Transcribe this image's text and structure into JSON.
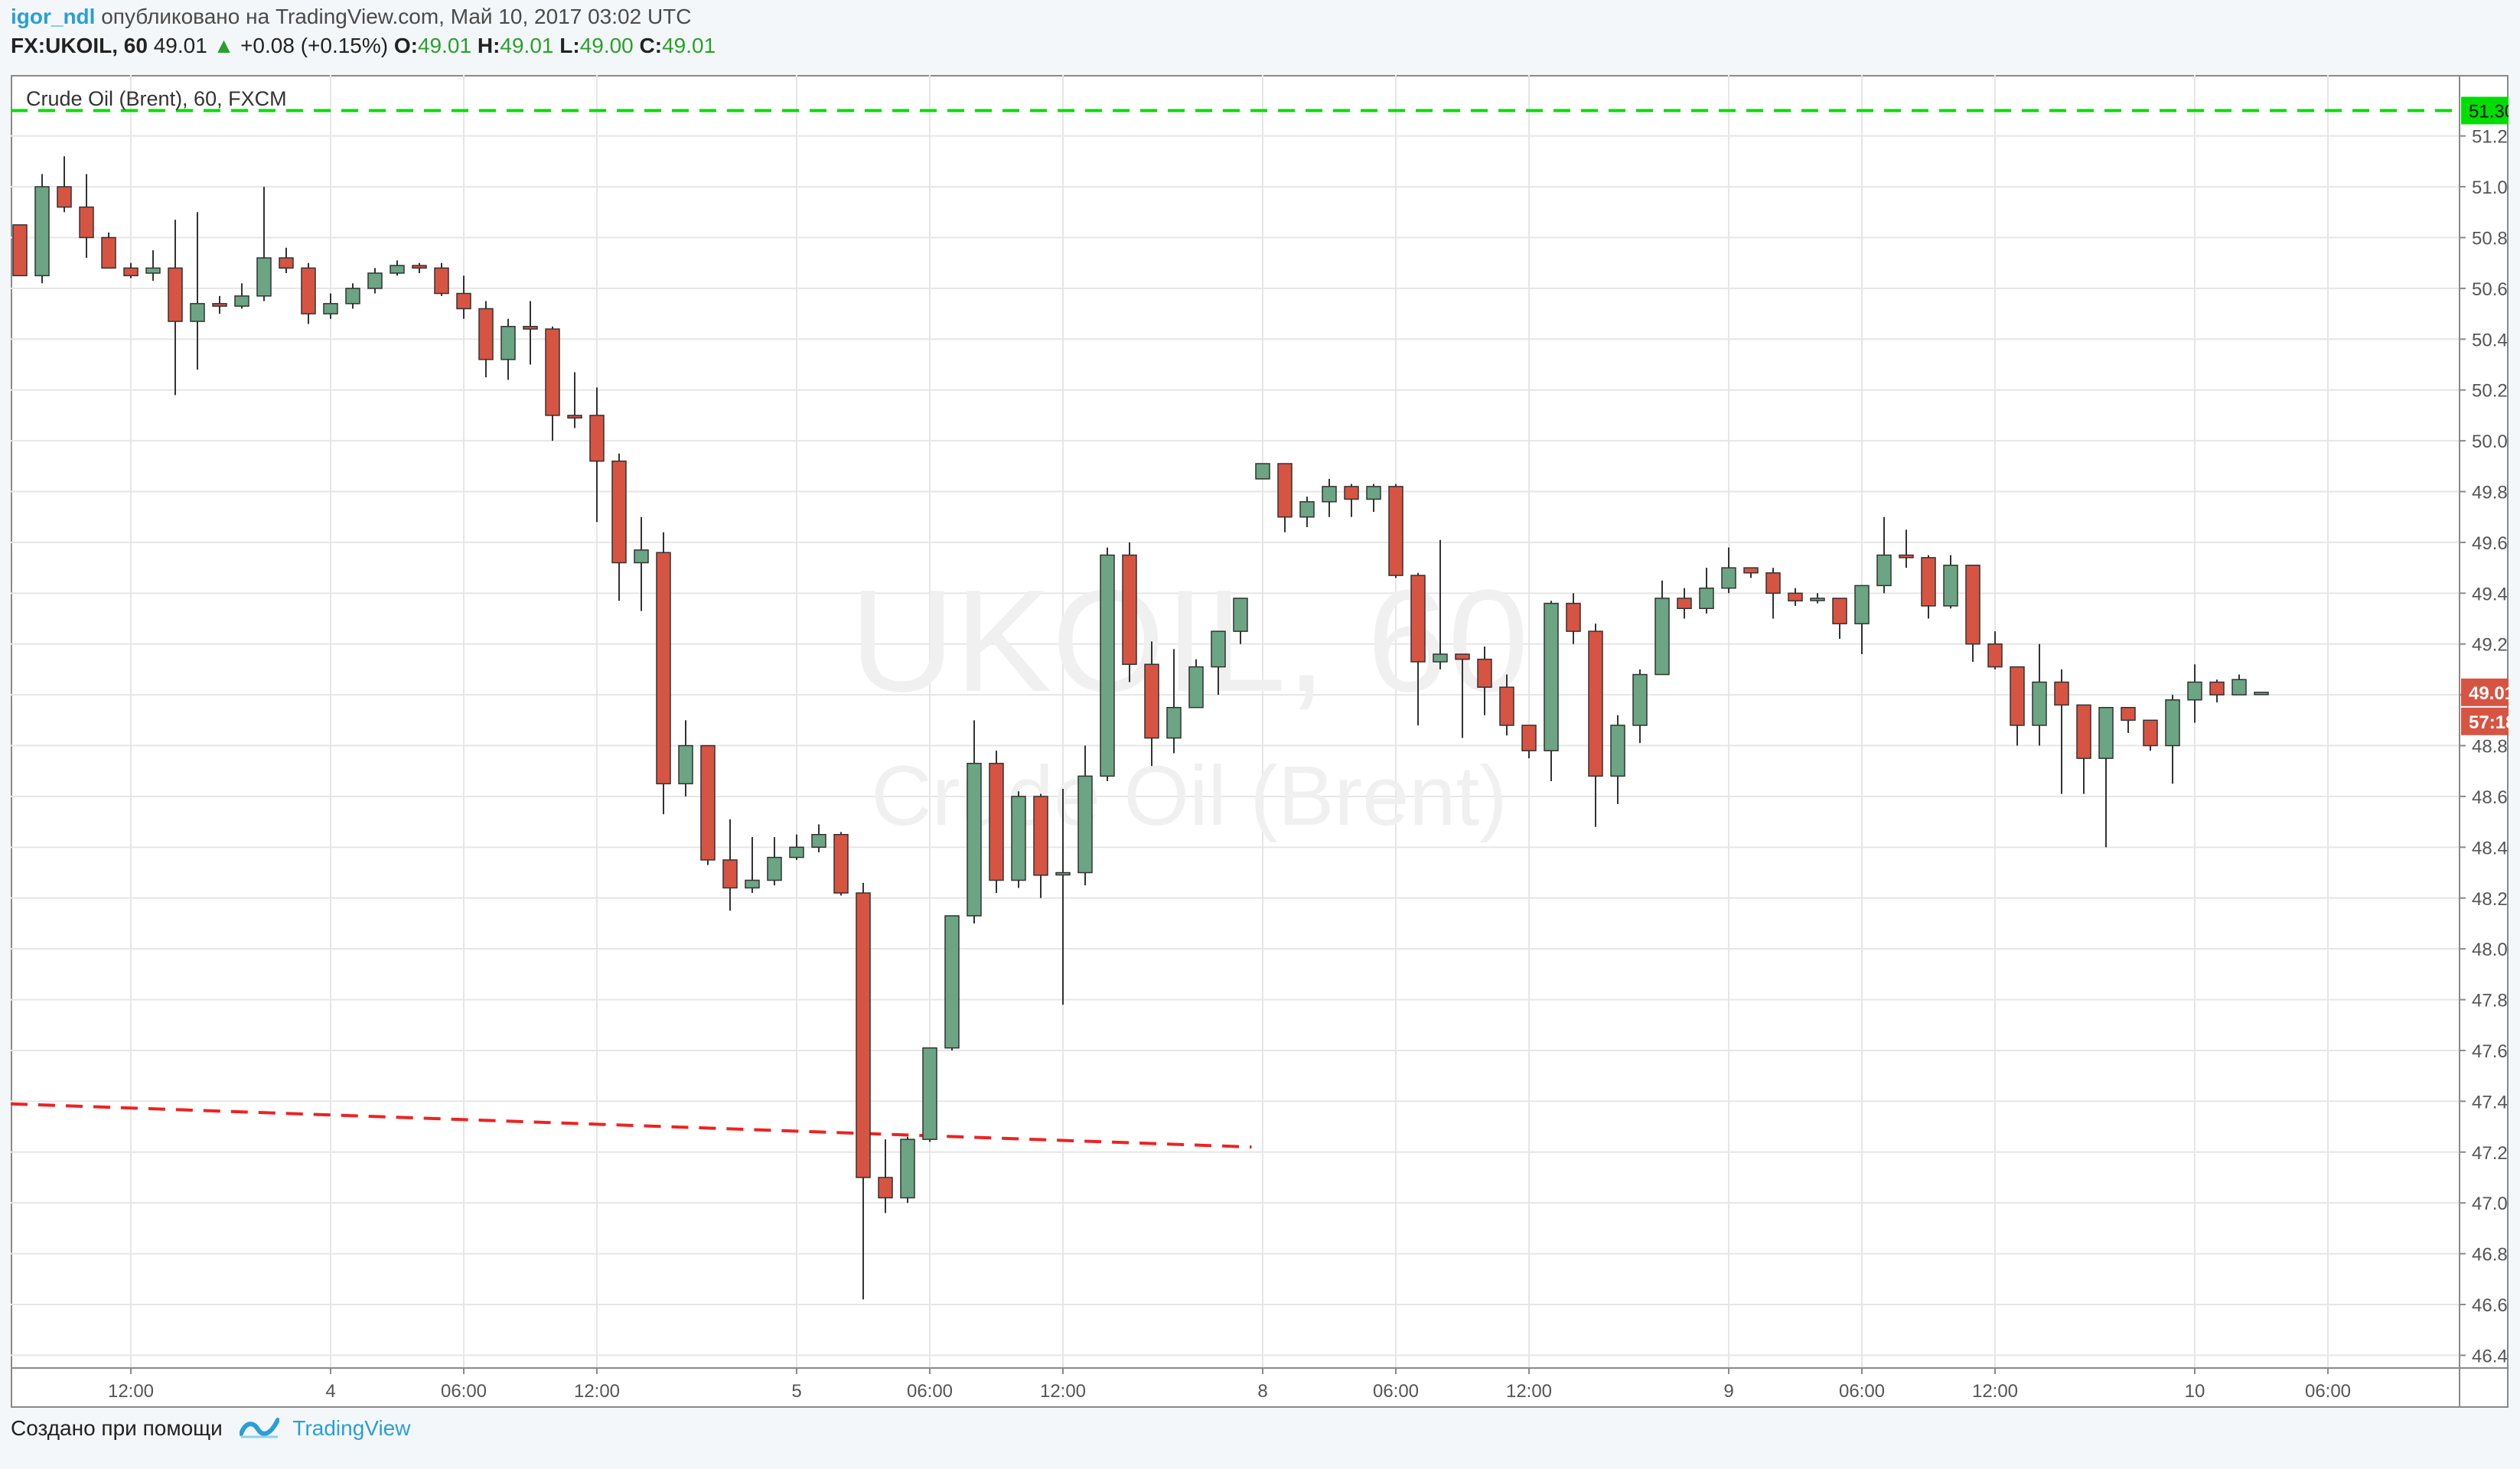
{
  "header": {
    "author": "igor_ndl",
    "published_text": "опубликовано на TradingView.com, Май 10, 2017 03:02 UTC",
    "symbol": "FX:UKOIL, 60",
    "last": "49.01",
    "change": "+0.08 (+0.15%)",
    "o_label": "O:",
    "o_value": "49.01",
    "h_label": "H:",
    "h_value": "49.01",
    "l_label": "L:",
    "l_value": "49.00",
    "c_label": "C:",
    "c_value": "49.01"
  },
  "footer": {
    "created_with": "Создано при помощи",
    "brand": "TradingView"
  },
  "chart_data": {
    "type": "candlestick",
    "title": "Crude Oil (Brent), 60, FXCM",
    "watermark_line1": "UKOIL, 60",
    "watermark_line2": "Crude Oil (Brent)",
    "ylim": [
      46.35,
      51.44
    ],
    "y_ticks": [
      "51.20",
      "51.00",
      "50.80",
      "50.60",
      "50.40",
      "50.20",
      "50.00",
      "49.80",
      "49.60",
      "49.40",
      "49.20",
      "49.00",
      "48.80",
      "48.60",
      "48.40",
      "48.20",
      "48.00",
      "47.80",
      "47.60",
      "47.40",
      "47.20",
      "47.00",
      "46.80",
      "46.60",
      "46.40"
    ],
    "x_ticks": [
      {
        "label": "12:00",
        "i": 5
      },
      {
        "label": "4",
        "i": 14
      },
      {
        "label": "06:00",
        "i": 20
      },
      {
        "label": "12:00",
        "i": 26
      },
      {
        "label": "5",
        "i": 35
      },
      {
        "label": "06:00",
        "i": 41
      },
      {
        "label": "12:00",
        "i": 47
      },
      {
        "label": "8",
        "i": 56
      },
      {
        "label": "06:00",
        "i": 62
      },
      {
        "label": "12:00",
        "i": 68
      },
      {
        "label": "9",
        "i": 77
      },
      {
        "label": "06:00",
        "i": 83
      },
      {
        "label": "12:00",
        "i": 89
      },
      {
        "label": "10",
        "i": 98
      },
      {
        "label": "06:00",
        "i": 104
      }
    ],
    "up_color": "#6ba583",
    "down_color": "#d75442",
    "resistance": {
      "value": "51.30",
      "color": "#00dd00"
    },
    "trend_line": {
      "color": "#ee2222",
      "x1": 0,
      "y1": 47.39,
      "x2": 55.5,
      "y2": 47.22
    },
    "last_price_label": {
      "value": "49.01",
      "color": "#d75442"
    },
    "countdown_label": {
      "value": "57:18",
      "color": "#d75442"
    },
    "candles": [
      [
        50.85,
        50.8,
        50.65,
        50.65
      ],
      [
        50.65,
        51.05,
        51.0,
        50.62
      ],
      [
        51.0,
        51.12,
        50.92,
        50.9
      ],
      [
        50.92,
        51.05,
        50.8,
        50.72
      ],
      [
        50.8,
        50.82,
        50.68,
        50.68
      ],
      [
        50.68,
        50.7,
        50.65,
        50.64
      ],
      [
        50.66,
        50.75,
        50.68,
        50.63
      ],
      [
        50.68,
        50.87,
        50.47,
        50.18
      ],
      [
        50.47,
        50.9,
        50.54,
        50.28
      ],
      [
        50.54,
        50.57,
        50.53,
        50.5
      ],
      [
        50.53,
        50.62,
        50.57,
        50.52
      ],
      [
        50.57,
        51.0,
        50.72,
        50.55
      ],
      [
        50.72,
        50.76,
        50.68,
        50.66
      ],
      [
        50.68,
        50.7,
        50.5,
        50.46
      ],
      [
        50.5,
        50.58,
        50.54,
        50.48
      ],
      [
        50.54,
        50.62,
        50.6,
        50.52
      ],
      [
        50.6,
        50.68,
        50.66,
        50.58
      ],
      [
        50.66,
        50.71,
        50.69,
        50.65
      ],
      [
        50.69,
        50.7,
        50.68,
        50.66
      ],
      [
        50.68,
        50.7,
        50.58,
        50.57
      ],
      [
        50.58,
        50.65,
        50.52,
        50.48
      ],
      [
        50.52,
        50.55,
        50.32,
        50.25
      ],
      [
        50.32,
        50.48,
        50.45,
        50.24
      ],
      [
        50.45,
        50.55,
        50.44,
        50.3
      ],
      [
        50.44,
        50.45,
        50.1,
        50.0
      ],
      [
        50.1,
        50.27,
        50.09,
        50.05
      ],
      [
        50.1,
        50.21,
        49.92,
        49.68
      ],
      [
        49.92,
        49.95,
        49.52,
        49.37
      ],
      [
        49.52,
        49.7,
        49.57,
        49.33
      ],
      [
        49.56,
        49.64,
        48.65,
        48.53
      ],
      [
        48.65,
        48.9,
        48.8,
        48.6
      ],
      [
        48.8,
        48.8,
        48.35,
        48.33
      ],
      [
        48.35,
        48.51,
        48.24,
        48.15
      ],
      [
        48.24,
        48.44,
        48.27,
        48.22
      ],
      [
        48.27,
        48.44,
        48.36,
        48.25
      ],
      [
        48.36,
        48.45,
        48.4,
        48.35
      ],
      [
        48.4,
        48.49,
        48.45,
        48.38
      ],
      [
        48.45,
        48.46,
        48.22,
        48.21
      ],
      [
        48.22,
        48.26,
        47.1,
        46.62
      ],
      [
        47.1,
        47.25,
        47.02,
        46.96
      ],
      [
        47.02,
        47.26,
        47.25,
        47.0
      ],
      [
        47.25,
        47.5,
        47.61,
        47.24
      ],
      [
        47.61,
        48.12,
        48.13,
        47.6
      ],
      [
        48.13,
        48.9,
        48.73,
        48.1
      ],
      [
        48.73,
        48.78,
        48.27,
        48.22
      ],
      [
        48.27,
        48.62,
        48.6,
        48.24
      ],
      [
        48.6,
        48.61,
        48.29,
        48.2
      ],
      [
        48.3,
        48.63,
        48.3,
        47.78
      ],
      [
        48.3,
        48.8,
        48.68,
        48.25
      ],
      [
        48.68,
        49.58,
        49.55,
        48.66
      ],
      [
        49.55,
        49.6,
        49.12,
        49.05
      ],
      [
        49.12,
        49.21,
        48.83,
        48.72
      ],
      [
        48.83,
        49.18,
        48.95,
        48.77
      ],
      [
        48.95,
        49.14,
        49.11,
        48.95
      ],
      [
        49.11,
        49.25,
        49.25,
        49.0
      ],
      [
        49.25,
        49.35,
        49.38,
        49.2
      ],
      [
        49.85,
        49.91,
        49.91,
        49.85
      ],
      [
        49.91,
        49.91,
        49.7,
        49.64
      ],
      [
        49.7,
        49.78,
        49.76,
        49.66
      ],
      [
        49.76,
        49.85,
        49.82,
        49.7
      ],
      [
        49.82,
        49.83,
        49.77,
        49.7
      ],
      [
        49.77,
        49.83,
        49.82,
        49.72
      ],
      [
        49.82,
        49.83,
        49.47,
        49.46
      ],
      [
        49.47,
        49.48,
        49.13,
        48.88
      ],
      [
        49.13,
        49.61,
        49.16,
        49.1
      ],
      [
        49.16,
        49.16,
        49.14,
        48.83
      ],
      [
        49.14,
        49.19,
        49.03,
        48.92
      ],
      [
        49.03,
        49.08,
        48.88,
        48.84
      ],
      [
        48.88,
        48.88,
        48.78,
        48.75
      ],
      [
        48.78,
        49.37,
        49.36,
        48.66
      ],
      [
        49.36,
        49.4,
        49.25,
        49.2
      ],
      [
        49.25,
        49.28,
        48.68,
        48.48
      ],
      [
        48.68,
        48.92,
        48.88,
        48.57
      ],
      [
        48.88,
        49.1,
        49.08,
        48.81
      ],
      [
        49.08,
        49.45,
        49.38,
        49.08
      ],
      [
        49.38,
        49.42,
        49.34,
        49.3
      ],
      [
        49.34,
        49.5,
        49.42,
        49.32
      ],
      [
        49.42,
        49.58,
        49.5,
        49.4
      ],
      [
        49.5,
        49.5,
        49.48,
        49.46
      ],
      [
        49.48,
        49.5,
        49.4,
        49.3
      ],
      [
        49.4,
        49.42,
        49.37,
        49.35
      ],
      [
        49.38,
        49.4,
        49.38,
        49.36
      ],
      [
        49.38,
        49.38,
        49.28,
        49.22
      ],
      [
        49.28,
        49.4,
        49.43,
        49.16
      ],
      [
        49.43,
        49.7,
        49.55,
        49.4
      ],
      [
        49.55,
        49.65,
        49.54,
        49.5
      ],
      [
        49.54,
        49.55,
        49.35,
        49.3
      ],
      [
        49.35,
        49.55,
        49.51,
        49.34
      ],
      [
        49.51,
        49.51,
        49.2,
        49.13
      ],
      [
        49.2,
        49.25,
        49.11,
        49.1
      ],
      [
        49.11,
        49.11,
        48.88,
        48.8
      ],
      [
        48.88,
        49.2,
        49.05,
        48.8
      ],
      [
        49.05,
        49.1,
        48.96,
        48.61
      ],
      [
        48.96,
        48.96,
        48.75,
        48.61
      ],
      [
        48.75,
        48.95,
        48.95,
        48.4
      ],
      [
        48.95,
        48.95,
        48.9,
        48.85
      ],
      [
        48.9,
        48.9,
        48.8,
        48.78
      ],
      [
        48.8,
        49.0,
        48.98,
        48.65
      ],
      [
        48.98,
        49.12,
        49.05,
        48.89
      ],
      [
        49.05,
        49.06,
        49.0,
        48.97
      ],
      [
        49.0,
        49.08,
        49.06,
        49.0
      ],
      [
        49.01,
        49.01,
        49.01,
        49.0
      ]
    ]
  }
}
